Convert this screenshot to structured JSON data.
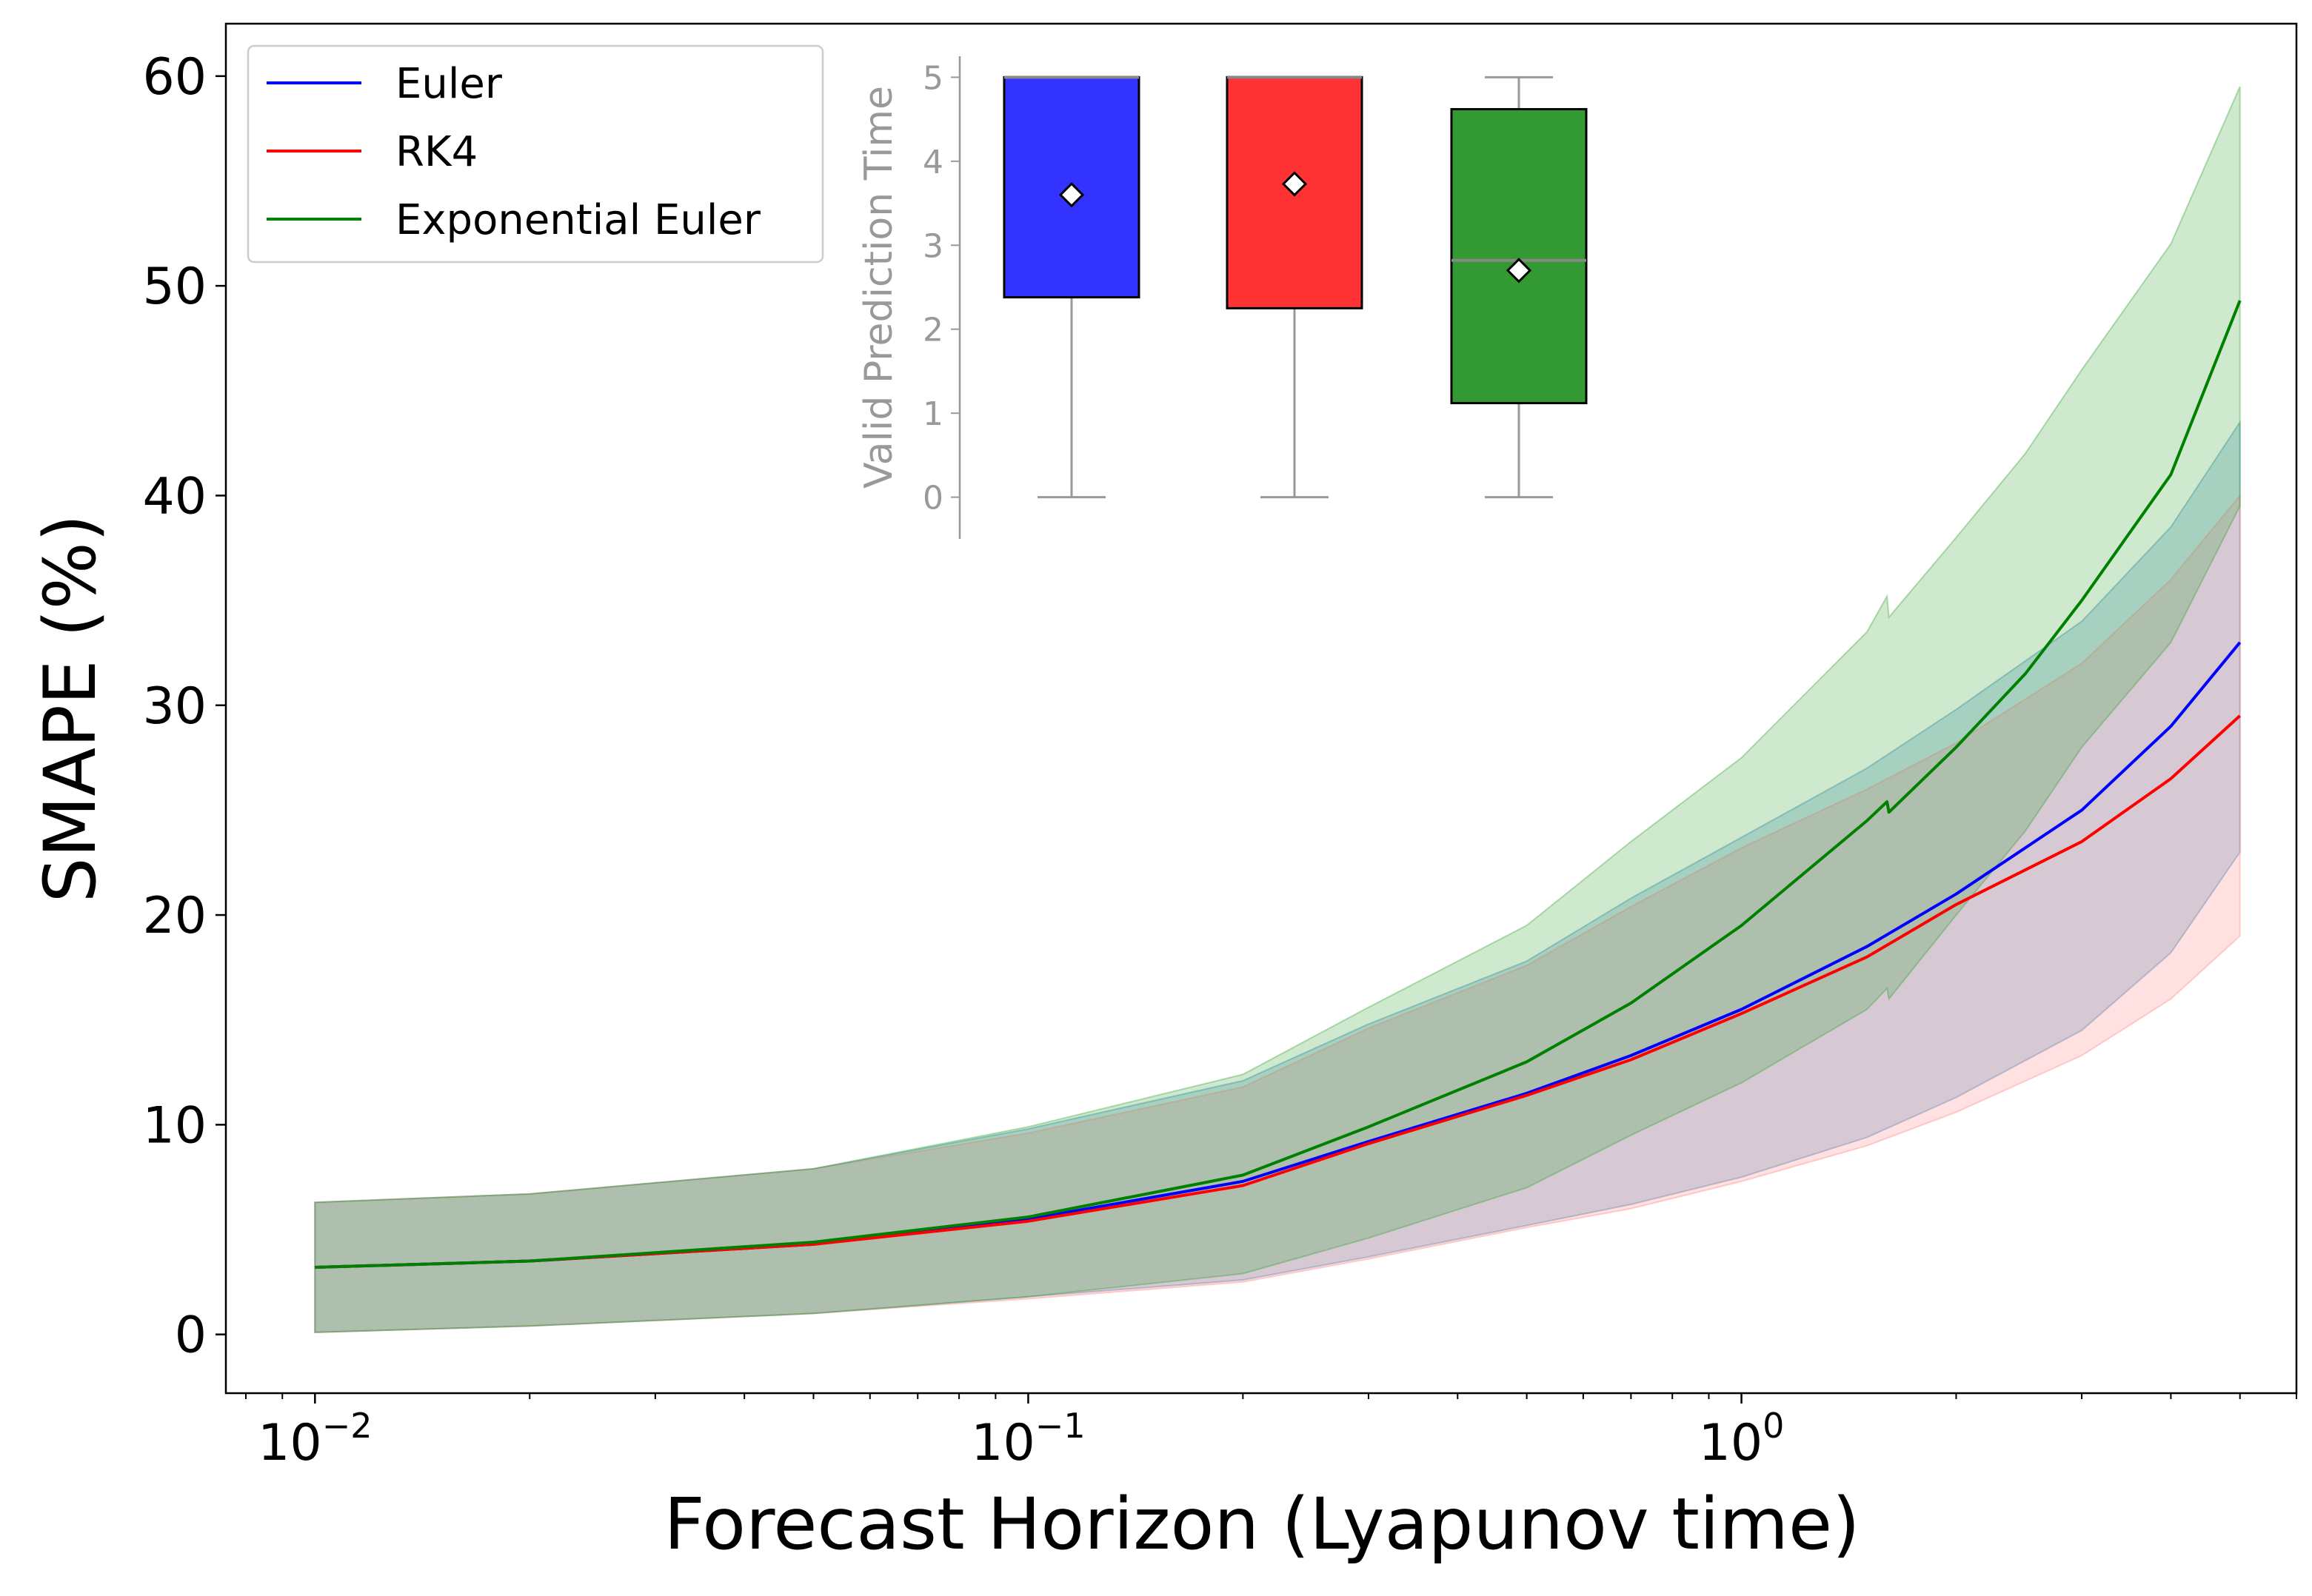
{
  "chart_data": {
    "type": "line",
    "xscale": "log",
    "xlabel": "Forecast Horizon (Lyapunov time)",
    "ylabel": "SMAPE (%)",
    "xlim": [
      0.0075,
      6.0
    ],
    "ylim": [
      -2.8,
      62.5
    ],
    "yticks": [
      0,
      10,
      20,
      30,
      40,
      50,
      60
    ],
    "ytick_labels": [
      "0",
      "10",
      "20",
      "30",
      "40",
      "50",
      "60"
    ],
    "xticks": [
      0.01,
      0.1,
      1
    ],
    "xtick_labels": [
      {
        "base": "10",
        "exp": "−2"
      },
      {
        "base": "10",
        "exp": "−1"
      },
      {
        "base": "10",
        "exp": "0"
      }
    ],
    "legend_position": "top-left",
    "series": [
      {
        "name": "Euler",
        "color": "#0000ff",
        "band_color": "#1f77b4",
        "x": [
          0.01,
          0.02,
          0.05,
          0.1,
          0.2,
          0.3,
          0.5,
          0.7,
          1.0,
          1.5,
          2.0,
          3.0,
          4.0,
          5.0
        ],
        "mean": [
          3.2,
          3.5,
          4.3,
          5.5,
          7.3,
          9.2,
          11.5,
          13.3,
          15.5,
          18.5,
          21.0,
          25.0,
          29.0,
          33.0
        ],
        "upper": [
          6.3,
          6.7,
          7.9,
          9.8,
          12.1,
          14.8,
          17.8,
          20.8,
          23.7,
          27.0,
          29.8,
          34.0,
          38.5,
          43.5
        ],
        "lower": [
          0.1,
          0.4,
          1.0,
          1.8,
          2.6,
          3.7,
          5.2,
          6.2,
          7.5,
          9.4,
          11.3,
          14.5,
          18.2,
          23.0
        ]
      },
      {
        "name": "RK4",
        "color": "#ff0000",
        "band_color": "#ff7f7f",
        "x": [
          0.01,
          0.02,
          0.05,
          0.1,
          0.2,
          0.3,
          0.5,
          0.7,
          1.0,
          1.5,
          2.0,
          3.0,
          4.0,
          5.0
        ],
        "mean": [
          3.2,
          3.5,
          4.3,
          5.4,
          7.1,
          9.1,
          11.4,
          13.1,
          15.3,
          18.0,
          20.5,
          23.5,
          26.5,
          29.5
        ],
        "upper": [
          6.3,
          6.7,
          7.9,
          9.6,
          11.8,
          14.6,
          17.6,
          20.4,
          23.2,
          26.0,
          28.2,
          32.0,
          36.0,
          40.0
        ],
        "lower": [
          0.1,
          0.4,
          1.0,
          1.7,
          2.5,
          3.6,
          5.1,
          6.0,
          7.3,
          9.0,
          10.6,
          13.3,
          16.0,
          19.0
        ]
      },
      {
        "name": "Exponential Euler",
        "color": "#008000",
        "band_color": "#2ca02c",
        "x": [
          0.01,
          0.02,
          0.05,
          0.1,
          0.2,
          0.3,
          0.5,
          0.7,
          1.0,
          1.5,
          1.6,
          1.61,
          2.0,
          2.5,
          3.0,
          4.0,
          5.0
        ],
        "mean": [
          3.2,
          3.5,
          4.4,
          5.6,
          7.6,
          9.9,
          13.0,
          15.8,
          19.5,
          24.5,
          25.4,
          24.9,
          28.0,
          31.5,
          35.0,
          41.0,
          49.3
        ],
        "upper": [
          6.3,
          6.7,
          7.9,
          9.9,
          12.4,
          15.6,
          19.5,
          23.5,
          27.5,
          33.5,
          35.2,
          34.2,
          38.0,
          42.0,
          46.0,
          52.0,
          59.5
        ],
        "lower": [
          0.1,
          0.4,
          1.0,
          1.8,
          2.9,
          4.6,
          7.0,
          9.5,
          12.0,
          15.5,
          16.5,
          16.0,
          20.0,
          24.0,
          28.0,
          33.0,
          39.5
        ]
      }
    ],
    "inset": {
      "type": "box",
      "ylabel": "Valid Prediction Time",
      "ylim": [
        -0.25,
        5.25
      ],
      "yticks": [
        0,
        1,
        2,
        3,
        4,
        5
      ],
      "ytick_labels": [
        "0",
        "1",
        "2",
        "3",
        "4",
        "5"
      ],
      "boxes": [
        {
          "name": "Euler",
          "color": "#0000ff",
          "min": 0,
          "q1": 2.38,
          "median": 5.0,
          "q3": 5.0,
          "max": 5.0,
          "mean": 3.6
        },
        {
          "name": "RK4",
          "color": "#ff0000",
          "min": 0,
          "q1": 2.25,
          "median": 5.0,
          "q3": 5.0,
          "max": 5.0,
          "mean": 3.73
        },
        {
          "name": "Exponential Euler",
          "color": "#008000",
          "min": 0,
          "q1": 1.12,
          "median": 2.82,
          "q3": 4.62,
          "max": 5.0,
          "mean": 2.7
        }
      ]
    }
  }
}
